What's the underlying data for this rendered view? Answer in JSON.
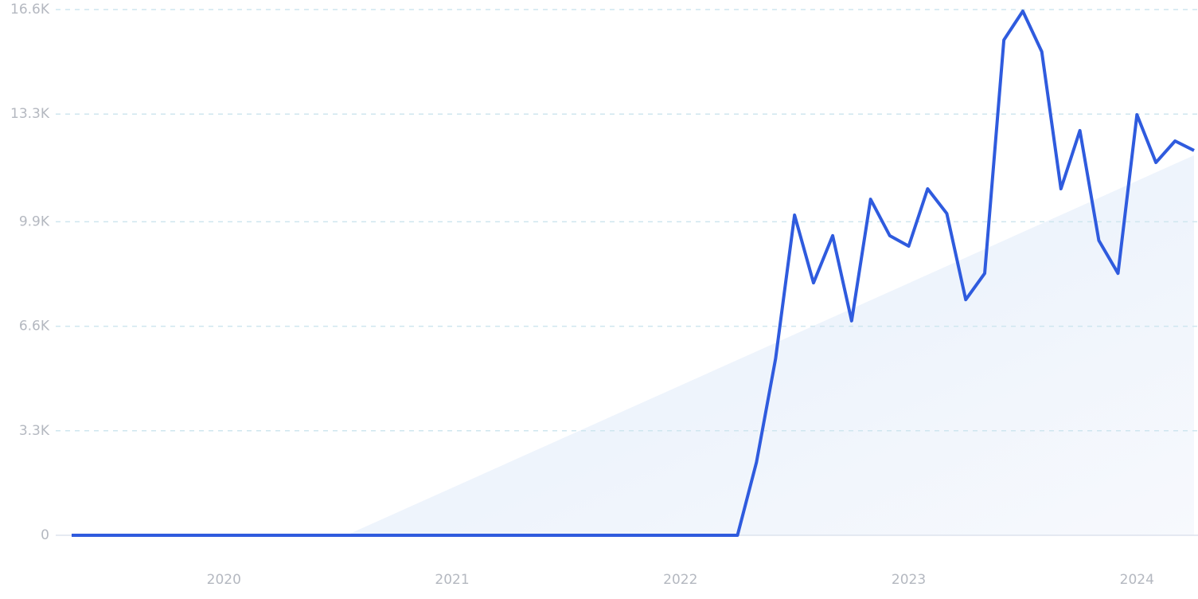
{
  "chart_data": {
    "type": "line",
    "x": [
      2019.333,
      2019.417,
      2019.5,
      2019.583,
      2019.667,
      2019.75,
      2019.833,
      2019.917,
      2020,
      2020.083,
      2020.167,
      2020.25,
      2020.333,
      2020.417,
      2020.5,
      2020.583,
      2020.667,
      2020.75,
      2020.833,
      2020.917,
      2021,
      2021.083,
      2021.167,
      2021.25,
      2021.333,
      2021.417,
      2021.5,
      2021.583,
      2021.667,
      2021.75,
      2021.833,
      2021.917,
      2022,
      2022.083,
      2022.167,
      2022.25,
      2022.333,
      2022.417,
      2022.5,
      2022.583,
      2022.667,
      2022.75,
      2022.833,
      2022.917,
      2023,
      2023.083,
      2023.167,
      2023.25,
      2023.333,
      2023.417,
      2023.5,
      2023.583,
      2023.667,
      2023.75,
      2023.833,
      2023.917,
      2024,
      2024.083,
      2024.167,
      2024.25
    ],
    "series": [
      {
        "color": "#2f5bde",
        "values": [
          0,
          0,
          0,
          0,
          0,
          0,
          0,
          0,
          0,
          0,
          0,
          0,
          0,
          0,
          0,
          0,
          0,
          0,
          0,
          0,
          0,
          0,
          0,
          0,
          0,
          0,
          0,
          0,
          0,
          0,
          0,
          0,
          0,
          0,
          0,
          0,
          2300,
          5580,
          10110,
          7970,
          9460,
          6770,
          10610,
          9460,
          9130,
          10940,
          10160,
          7440,
          8270,
          15640,
          16550,
          15270,
          10940,
          12780,
          9310,
          8270,
          13280,
          11770,
          12450,
          12150
        ]
      }
    ],
    "xlim": [
      2019.333,
      2024.25
    ],
    "xticks": [
      2020,
      2021,
      2022,
      2023,
      2024
    ],
    "ylim": [
      0,
      16600
    ],
    "yticks": [
      0,
      {
        "value": 3300,
        "label": "3.3K"
      },
      {
        "value": 6600,
        "label": "6.6K"
      },
      {
        "value": 9900,
        "label": "9.9K"
      },
      {
        "value": 13300,
        "label": "13.3K"
      },
      {
        "value": 16600,
        "label": "16.6K"
      }
    ],
    "grid": true
  }
}
